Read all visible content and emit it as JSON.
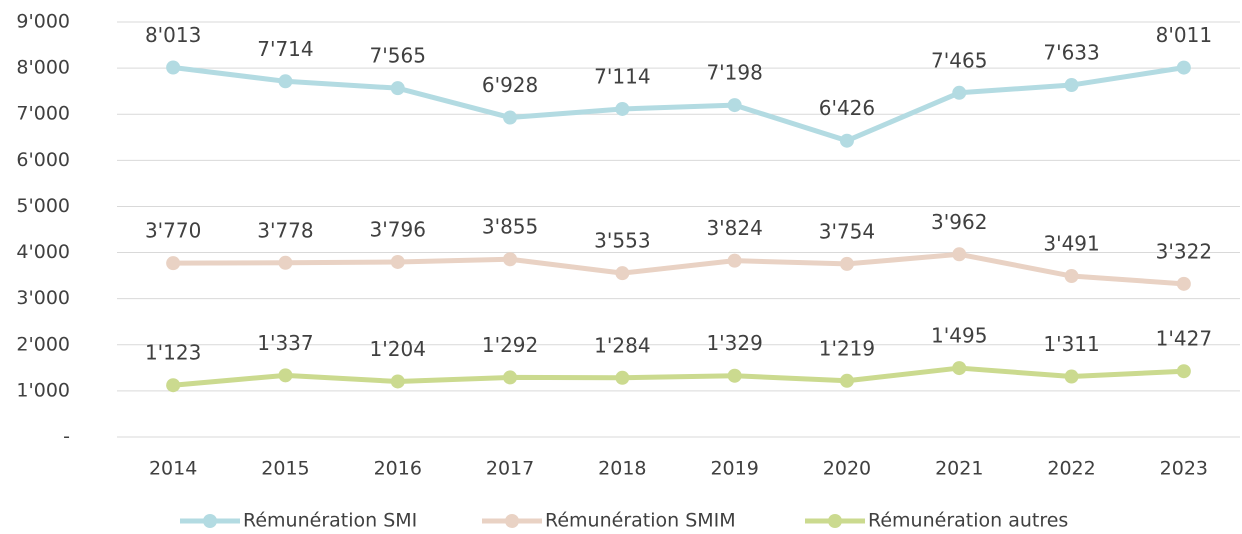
{
  "chart_data": {
    "type": "line",
    "categories": [
      "2014",
      "2015",
      "2016",
      "2017",
      "2018",
      "2019",
      "2020",
      "2021",
      "2022",
      "2023"
    ],
    "series": [
      {
        "name": "Rémunération SMI",
        "color": "#b3dbe2",
        "values": [
          8013,
          7714,
          7565,
          6928,
          7114,
          7198,
          6426,
          7465,
          7633,
          8011
        ],
        "value_labels": [
          "8'013",
          "7'714",
          "7'565",
          "6'928",
          "7'114",
          "7'198",
          "6'426",
          "7'465",
          "7'633",
          "8'011"
        ]
      },
      {
        "name": "Rémunération SMIM",
        "color": "#e9d2c4",
        "values": [
          3770,
          3778,
          3796,
          3855,
          3553,
          3824,
          3754,
          3962,
          3491,
          3322
        ],
        "value_labels": [
          "3'770",
          "3'778",
          "3'796",
          "3'855",
          "3'553",
          "3'824",
          "3'754",
          "3'962",
          "3'491",
          "3'322"
        ]
      },
      {
        "name": "Rémunération autres",
        "color": "#cbda8f",
        "values": [
          1123,
          1337,
          1204,
          1292,
          1284,
          1329,
          1219,
          1495,
          1311,
          1427
        ],
        "value_labels": [
          "1'123",
          "1'337",
          "1'204",
          "1'292",
          "1'284",
          "1'329",
          "1'219",
          "1'495",
          "1'311",
          "1'427"
        ]
      }
    ],
    "ylim": [
      0,
      9000
    ],
    "yticks": [
      {
        "value": 0,
        "label": "-"
      },
      {
        "value": 1000,
        "label": "1'000"
      },
      {
        "value": 2000,
        "label": "2'000"
      },
      {
        "value": 3000,
        "label": "3'000"
      },
      {
        "value": 4000,
        "label": "4'000"
      },
      {
        "value": 5000,
        "label": "5'000"
      },
      {
        "value": 6000,
        "label": "6'000"
      },
      {
        "value": 7000,
        "label": "7'000"
      },
      {
        "value": 8000,
        "label": "8'000"
      },
      {
        "value": 9000,
        "label": "9'000"
      }
    ],
    "grid": true,
    "legend": "bottom"
  }
}
